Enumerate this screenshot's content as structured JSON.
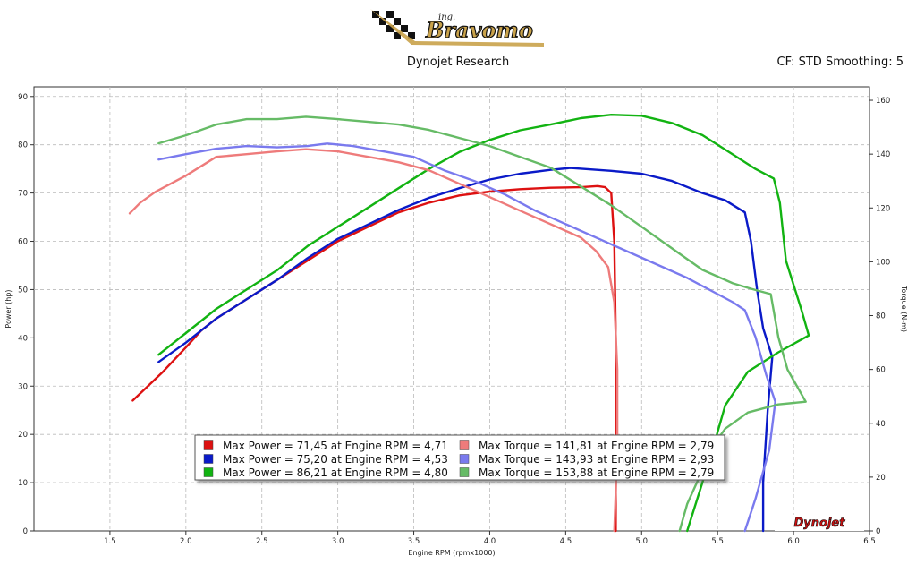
{
  "header": {
    "logo_text": "Bravomo",
    "logo_prefix": "ing.",
    "center_title": "Dynojet Research",
    "right_info": "CF: STD Smoothing: 5"
  },
  "chart_data": {
    "type": "line",
    "xlabel": "Engine RPM (rpmx1000)",
    "ylabel_left": "Power (hp)",
    "ylabel_right": "Torque (N-m)",
    "xlim": [
      1.0,
      6.5
    ],
    "ylim_left": [
      0,
      92
    ],
    "ylim_right": [
      0,
      165
    ],
    "x_ticks": [
      1.5,
      2.0,
      2.5,
      3.0,
      3.5,
      4.0,
      4.5,
      5.0,
      5.5,
      6.0,
      6.5
    ],
    "x_tick_labels": [
      "1.5",
      "2.0",
      "2.5",
      "3.0",
      "3.5",
      "4.0",
      "4.5",
      "5.0",
      "5.5",
      "6.0",
      "6.5"
    ],
    "y_left_ticks": [
      0,
      10,
      20,
      30,
      40,
      50,
      60,
      70,
      80,
      90
    ],
    "y_left_tick_labels": [
      "0",
      "10",
      "20",
      "30",
      "40",
      "50",
      "60",
      "70",
      "80",
      "90"
    ],
    "y_right_ticks": [
      0,
      20,
      40,
      60,
      80,
      100,
      120,
      140,
      160
    ],
    "y_right_tick_labels": [
      "0",
      "20",
      "40",
      "60",
      "80",
      "100",
      "120",
      "140",
      "160"
    ],
    "grid": true,
    "legend_position": "bottom-center",
    "brand_mark": "Dynojet",
    "series": [
      {
        "name": "Max Power = 71,45 at Engine RPM = 4,71",
        "color": "#dd1111",
        "axis": "left",
        "points": [
          [
            1.65,
            27
          ],
          [
            1.75,
            30
          ],
          [
            1.85,
            33
          ],
          [
            2.0,
            38
          ],
          [
            2.1,
            41.5
          ],
          [
            2.2,
            44
          ],
          [
            2.4,
            48
          ],
          [
            2.6,
            52
          ],
          [
            2.8,
            56
          ],
          [
            3.0,
            60
          ],
          [
            3.2,
            63
          ],
          [
            3.4,
            66
          ],
          [
            3.6,
            68
          ],
          [
            3.8,
            69.5
          ],
          [
            4.0,
            70.3
          ],
          [
            4.2,
            70.8
          ],
          [
            4.4,
            71.1
          ],
          [
            4.6,
            71.2
          ],
          [
            4.71,
            71.45
          ],
          [
            4.76,
            71.2
          ],
          [
            4.8,
            70
          ],
          [
            4.82,
            60
          ],
          [
            4.83,
            40
          ],
          [
            4.83,
            20
          ],
          [
            4.83,
            0
          ]
        ]
      },
      {
        "name": "Max Power = 75,20 at Engine RPM = 4,53",
        "color": "#0a1ac8",
        "axis": "left",
        "points": [
          [
            1.82,
            35
          ],
          [
            2.0,
            39
          ],
          [
            2.2,
            44
          ],
          [
            2.4,
            48
          ],
          [
            2.6,
            52
          ],
          [
            2.8,
            56.5
          ],
          [
            3.0,
            60.5
          ],
          [
            3.2,
            63.5
          ],
          [
            3.4,
            66.5
          ],
          [
            3.6,
            69
          ],
          [
            3.8,
            71
          ],
          [
            4.0,
            72.8
          ],
          [
            4.2,
            74
          ],
          [
            4.4,
            74.8
          ],
          [
            4.53,
            75.2
          ],
          [
            4.8,
            74.6
          ],
          [
            5.0,
            74
          ],
          [
            5.2,
            72.5
          ],
          [
            5.4,
            70
          ],
          [
            5.55,
            68.5
          ],
          [
            5.68,
            66
          ],
          [
            5.72,
            60
          ],
          [
            5.76,
            50
          ],
          [
            5.8,
            42
          ],
          [
            5.86,
            36
          ],
          [
            5.83,
            25
          ],
          [
            5.8,
            10
          ],
          [
            5.8,
            0
          ]
        ]
      },
      {
        "name": "Max Power = 86,21 at Engine RPM = 4,80",
        "color": "#12b312",
        "axis": "left",
        "points": [
          [
            1.82,
            36.5
          ],
          [
            2.0,
            41
          ],
          [
            2.2,
            46
          ],
          [
            2.4,
            50
          ],
          [
            2.6,
            54
          ],
          [
            2.8,
            59
          ],
          [
            3.0,
            63
          ],
          [
            3.2,
            67
          ],
          [
            3.4,
            71
          ],
          [
            3.6,
            75
          ],
          [
            3.8,
            78.5
          ],
          [
            4.0,
            81
          ],
          [
            4.2,
            83
          ],
          [
            4.4,
            84.2
          ],
          [
            4.6,
            85.5
          ],
          [
            4.8,
            86.21
          ],
          [
            5.0,
            86
          ],
          [
            5.2,
            84.5
          ],
          [
            5.4,
            82
          ],
          [
            5.6,
            78
          ],
          [
            5.75,
            75
          ],
          [
            5.87,
            73
          ],
          [
            5.91,
            68
          ],
          [
            5.95,
            56
          ],
          [
            6.05,
            46
          ],
          [
            6.1,
            40.5
          ],
          [
            5.9,
            37
          ],
          [
            5.7,
            33
          ],
          [
            5.55,
            26
          ],
          [
            5.45,
            15
          ],
          [
            5.35,
            5
          ],
          [
            5.3,
            0
          ]
        ]
      },
      {
        "name": "Max Torque = 141,81 at Engine RPM = 2,79",
        "color": "#ee7b7b",
        "axis": "right",
        "points": [
          [
            1.63,
            118
          ],
          [
            1.7,
            122
          ],
          [
            1.8,
            126
          ],
          [
            2.0,
            132
          ],
          [
            2.2,
            139
          ],
          [
            2.4,
            140
          ],
          [
            2.6,
            141
          ],
          [
            2.79,
            141.81
          ],
          [
            3.0,
            141
          ],
          [
            3.2,
            139
          ],
          [
            3.4,
            137
          ],
          [
            3.6,
            134
          ],
          [
            3.8,
            129
          ],
          [
            4.0,
            124
          ],
          [
            4.2,
            119
          ],
          [
            4.4,
            114
          ],
          [
            4.6,
            109
          ],
          [
            4.7,
            104
          ],
          [
            4.78,
            98
          ],
          [
            4.82,
            85
          ],
          [
            4.84,
            60
          ],
          [
            4.84,
            30
          ],
          [
            4.82,
            0
          ]
        ]
      },
      {
        "name": "Max Torque = 143,93 at Engine RPM = 2,93",
        "color": "#7a7aee",
        "axis": "right",
        "points": [
          [
            1.82,
            138
          ],
          [
            2.0,
            140
          ],
          [
            2.2,
            142
          ],
          [
            2.4,
            143
          ],
          [
            2.6,
            142.5
          ],
          [
            2.8,
            143
          ],
          [
            2.93,
            143.93
          ],
          [
            3.1,
            143
          ],
          [
            3.3,
            141
          ],
          [
            3.5,
            139
          ],
          [
            3.7,
            134
          ],
          [
            3.9,
            130
          ],
          [
            4.1,
            125
          ],
          [
            4.3,
            119
          ],
          [
            4.5,
            114
          ],
          [
            4.7,
            109
          ],
          [
            4.9,
            104
          ],
          [
            5.1,
            99
          ],
          [
            5.3,
            94
          ],
          [
            5.5,
            88
          ],
          [
            5.6,
            85
          ],
          [
            5.68,
            82
          ],
          [
            5.75,
            72
          ],
          [
            5.82,
            58
          ],
          [
            5.88,
            48
          ],
          [
            5.84,
            30
          ],
          [
            5.75,
            12
          ],
          [
            5.68,
            0
          ]
        ]
      },
      {
        "name": "Max Torque = 153,88 at Engine RPM = 2,79",
        "color": "#66bb66",
        "axis": "right",
        "points": [
          [
            1.82,
            144
          ],
          [
            2.0,
            147
          ],
          [
            2.2,
            151
          ],
          [
            2.4,
            153
          ],
          [
            2.6,
            153
          ],
          [
            2.79,
            153.88
          ],
          [
            3.0,
            153
          ],
          [
            3.2,
            152
          ],
          [
            3.4,
            151
          ],
          [
            3.6,
            149
          ],
          [
            3.8,
            146
          ],
          [
            4.0,
            143
          ],
          [
            4.2,
            139
          ],
          [
            4.4,
            135
          ],
          [
            4.6,
            128
          ],
          [
            4.8,
            121
          ],
          [
            5.0,
            113
          ],
          [
            5.2,
            105
          ],
          [
            5.4,
            97
          ],
          [
            5.6,
            92
          ],
          [
            5.72,
            90
          ],
          [
            5.85,
            88
          ],
          [
            5.9,
            72
          ],
          [
            5.96,
            60
          ],
          [
            6.08,
            48
          ],
          [
            5.9,
            47
          ],
          [
            5.7,
            44
          ],
          [
            5.55,
            38
          ],
          [
            5.45,
            30
          ],
          [
            5.38,
            20
          ],
          [
            5.3,
            10
          ],
          [
            5.25,
            0
          ]
        ]
      }
    ]
  }
}
